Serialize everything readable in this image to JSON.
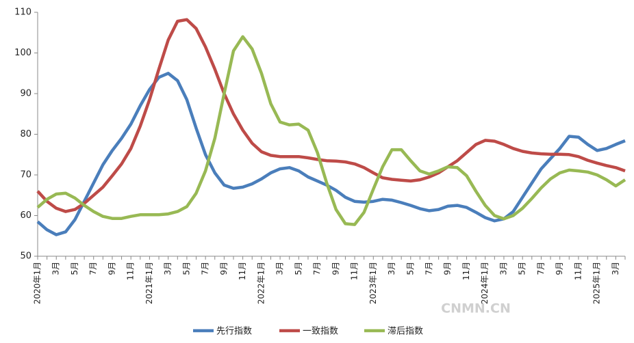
{
  "chart_data": {
    "type": "line",
    "categories": [
      "2020年1月",
      null,
      "3月",
      null,
      "5月",
      null,
      "7月",
      null,
      "9月",
      null,
      "11月",
      null,
      "2021年1月",
      null,
      "3月",
      null,
      "5月",
      null,
      "7月",
      null,
      "9月",
      null,
      "11月",
      null,
      "2022年1月",
      null,
      "3月",
      null,
      "5月",
      null,
      "7月",
      null,
      "9月",
      null,
      "11月",
      null,
      "2023年1月",
      null,
      "3月",
      null,
      "5月",
      null,
      "7月",
      null,
      "9月",
      null,
      "11月",
      null,
      "2024年1月",
      null,
      "3月",
      null,
      "5月",
      null,
      "7月",
      null,
      "9月",
      null,
      "11月",
      null,
      "2025年1月",
      null,
      "3月",
      null
    ],
    "series": [
      {
        "name": "先行指数",
        "color": "#4a7ebb",
        "values": [
          58.5,
          56.5,
          55.3,
          56,
          59,
          63.5,
          68,
          72.5,
          76,
          79,
          82.5,
          87,
          91,
          94,
          95,
          93.2,
          88.5,
          81.5,
          75,
          70.5,
          67.5,
          66.7,
          67,
          67.8,
          69,
          70.5,
          71.5,
          71.8,
          71,
          69.5,
          68.5,
          67.5,
          66.2,
          64.5,
          63.5,
          63.3,
          63.5,
          64,
          63.8,
          63.2,
          62.5,
          61.7,
          61.2,
          61.5,
          62.3,
          62.5,
          62,
          60.8,
          59.5,
          58.7,
          59.2,
          61,
          64.5,
          68,
          71.5,
          74,
          76.5,
          79.5,
          79.3,
          77.5,
          76,
          76.5,
          77.5,
          78.4
        ]
      },
      {
        "name": "一致指数",
        "color": "#be4b48",
        "values": [
          66,
          63.5,
          61.8,
          61,
          61.5,
          63,
          65,
          67,
          69.8,
          72.7,
          76.5,
          82,
          88.5,
          96,
          103.2,
          107.8,
          108.2,
          106,
          101.5,
          96,
          90,
          85,
          81,
          77.8,
          75.7,
          74.8,
          74.5,
          74.5,
          74.5,
          74.2,
          73.8,
          73.5,
          73.4,
          73.2,
          72.7,
          71.8,
          70.5,
          69.3,
          68.9,
          68.7,
          68.5,
          68.8,
          69.5,
          70.5,
          72,
          73.5,
          75.5,
          77.5,
          78.5,
          78.3,
          77.5,
          76.5,
          75.8,
          75.4,
          75.2,
          75.1,
          75.1,
          75,
          74.5,
          73.6,
          72.9,
          72.3,
          71.8,
          71
        ]
      },
      {
        "name": "滞后指数",
        "color": "#98b954",
        "values": [
          62,
          64,
          65.3,
          65.5,
          64.3,
          62.5,
          61,
          59.8,
          59.3,
          59.3,
          59.8,
          60.2,
          60.2,
          60.2,
          60.4,
          61,
          62.2,
          65.5,
          71,
          79,
          90,
          100.5,
          104,
          101,
          95,
          87.5,
          83,
          82.3,
          82.5,
          81,
          75.5,
          68,
          61.5,
          58,
          57.8,
          60.8,
          66.5,
          72,
          76.2,
          76.2,
          73.5,
          71,
          70.2,
          71,
          72,
          71.8,
          69.8,
          66,
          62.5,
          60,
          59.2,
          60,
          61.8,
          64.2,
          66.8,
          69,
          70.5,
          71.2,
          71,
          70.7,
          70,
          68.8,
          67.3,
          68.8
        ]
      }
    ],
    "ylim": [
      50,
      110
    ],
    "yticks": [
      50,
      60,
      70,
      80,
      90,
      100,
      110
    ],
    "grid": false,
    "legend": "bottom",
    "annotations": [
      "CNMN.CN"
    ]
  }
}
